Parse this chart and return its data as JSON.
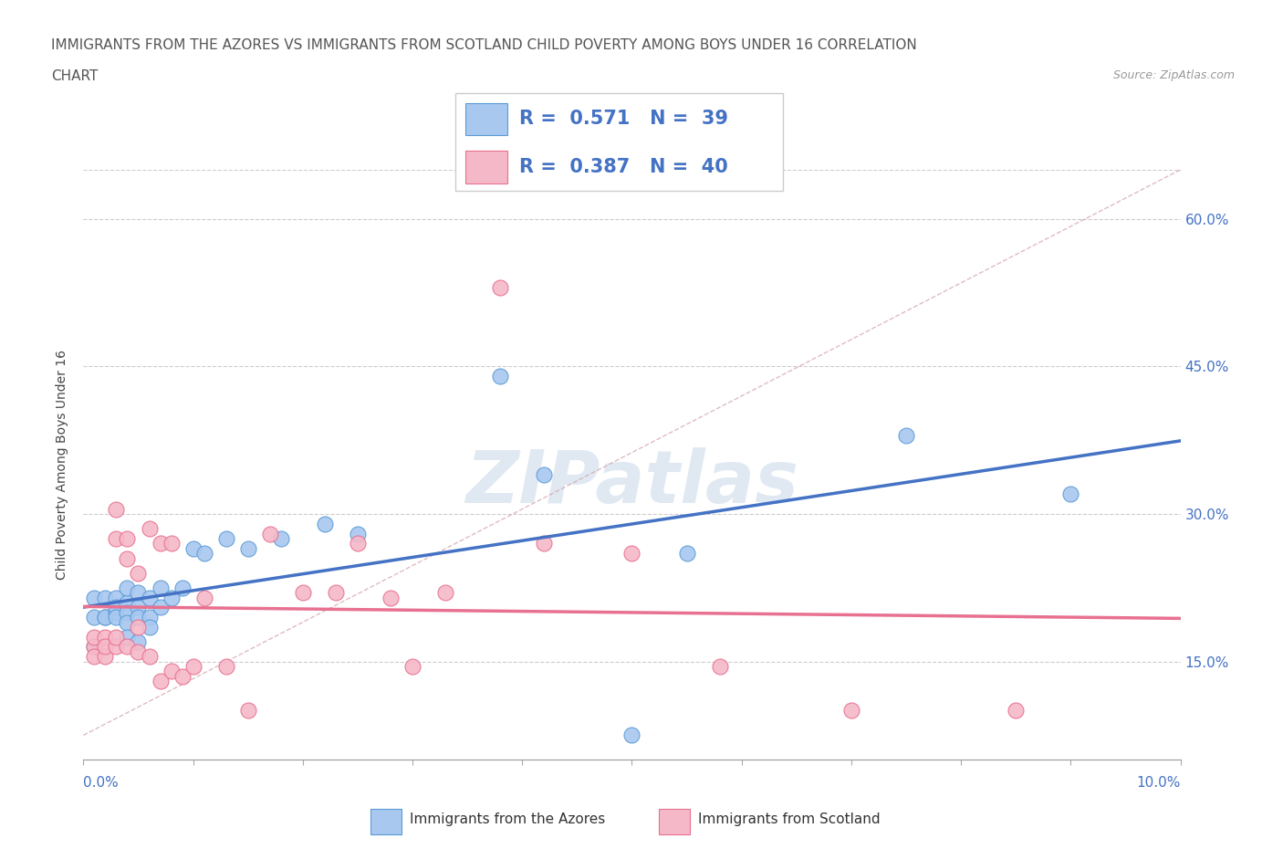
{
  "title_line1": "IMMIGRANTS FROM THE AZORES VS IMMIGRANTS FROM SCOTLAND CHILD POVERTY AMONG BOYS UNDER 16 CORRELATION",
  "title_line2": "CHART",
  "source_text": "Source: ZipAtlas.com",
  "ylabel": "Child Poverty Among Boys Under 16",
  "xlim": [
    0.0,
    0.1
  ],
  "ylim": [
    0.05,
    0.65
  ],
  "yticks": [
    0.15,
    0.3,
    0.45,
    0.6
  ],
  "ytick_labels": [
    "15.0%",
    "30.0%",
    "45.0%",
    "60.0%"
  ],
  "azores_color": "#a8c8f0",
  "azores_edge": "#5b9bd5",
  "scotland_color": "#f5b8c8",
  "scotland_edge": "#e87090",
  "azores_R": 0.571,
  "azores_N": 39,
  "scotland_R": 0.387,
  "scotland_N": 40,
  "legend_color": "#4472c4",
  "azores_line_color": "#4472c4",
  "scotland_line_color": "#e87090",
  "ref_line_color": "#d0a0a8",
  "watermark_color": "#c8d8e8",
  "watermark": "ZIPatlas",
  "azores_x": [
    0.001,
    0.001,
    0.001,
    0.002,
    0.002,
    0.002,
    0.003,
    0.003,
    0.003,
    0.003,
    0.004,
    0.004,
    0.004,
    0.004,
    0.004,
    0.005,
    0.005,
    0.005,
    0.005,
    0.006,
    0.006,
    0.006,
    0.007,
    0.007,
    0.008,
    0.009,
    0.01,
    0.011,
    0.013,
    0.015,
    0.018,
    0.022,
    0.025,
    0.038,
    0.042,
    0.05,
    0.055,
    0.075,
    0.09
  ],
  "azores_y": [
    0.165,
    0.195,
    0.215,
    0.195,
    0.215,
    0.195,
    0.2,
    0.215,
    0.205,
    0.195,
    0.21,
    0.225,
    0.2,
    0.19,
    0.175,
    0.205,
    0.22,
    0.195,
    0.17,
    0.215,
    0.195,
    0.185,
    0.225,
    0.205,
    0.215,
    0.225,
    0.265,
    0.26,
    0.275,
    0.265,
    0.275,
    0.29,
    0.28,
    0.44,
    0.34,
    0.075,
    0.26,
    0.38,
    0.32
  ],
  "scotland_x": [
    0.001,
    0.001,
    0.001,
    0.002,
    0.002,
    0.002,
    0.003,
    0.003,
    0.003,
    0.003,
    0.004,
    0.004,
    0.004,
    0.005,
    0.005,
    0.005,
    0.006,
    0.006,
    0.007,
    0.007,
    0.008,
    0.008,
    0.009,
    0.01,
    0.011,
    0.013,
    0.015,
    0.017,
    0.02,
    0.023,
    0.025,
    0.028,
    0.03,
    0.033,
    0.038,
    0.042,
    0.05,
    0.058,
    0.07,
    0.085
  ],
  "scotland_y": [
    0.165,
    0.155,
    0.175,
    0.155,
    0.175,
    0.165,
    0.305,
    0.275,
    0.165,
    0.175,
    0.275,
    0.255,
    0.165,
    0.24,
    0.185,
    0.16,
    0.155,
    0.285,
    0.13,
    0.27,
    0.14,
    0.27,
    0.135,
    0.145,
    0.215,
    0.145,
    0.1,
    0.28,
    0.22,
    0.22,
    0.27,
    0.215,
    0.145,
    0.22,
    0.53,
    0.27,
    0.26,
    0.145,
    0.1,
    0.1
  ]
}
